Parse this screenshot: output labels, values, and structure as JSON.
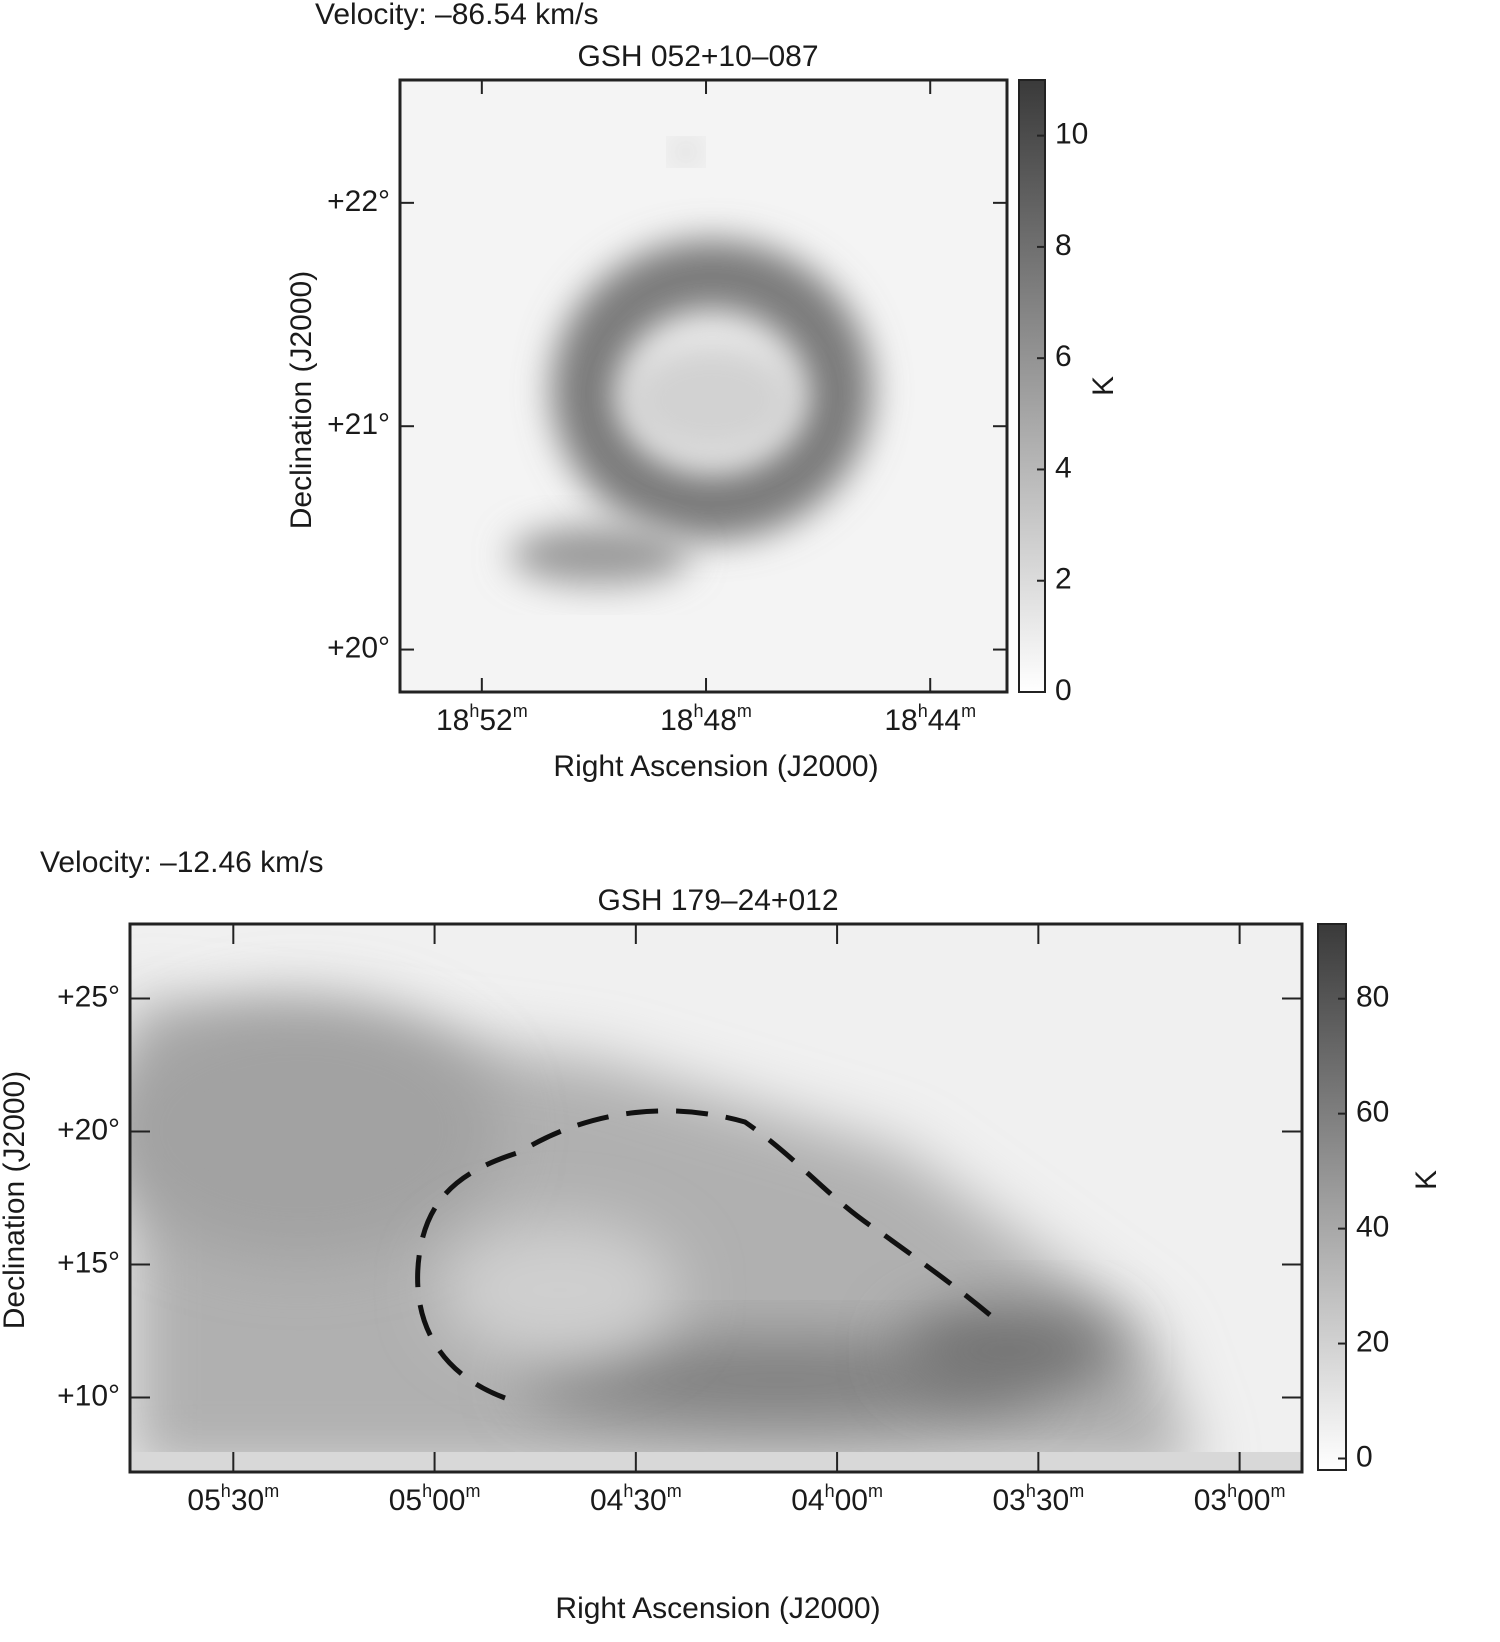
{
  "chart_data": [
    {
      "type": "image",
      "annotation": "Velocity: –86.54 km/s",
      "title": "GSH 052+10–087",
      "xlabel": "Right Ascension (J2000)",
      "ylabel": "Declination (J2000)",
      "xlim": [
        1133.46,
        1122.63
      ],
      "xticks": [
        {
          "value": 1132,
          "label": "18h52m"
        },
        {
          "value": 1128,
          "label": "18h48m"
        },
        {
          "value": 1124,
          "label": "18h44m"
        }
      ],
      "ylim": [
        19.81,
        22.55
      ],
      "yticks": [
        {
          "value": 20,
          "label": "+20°"
        },
        {
          "value": 21,
          "label": "+21°"
        },
        {
          "value": 22,
          "label": "+22°"
        }
      ],
      "colorbar": {
        "label": "K",
        "lim": [
          0,
          11
        ],
        "ticks": [
          0,
          2,
          4,
          6,
          8,
          10
        ],
        "colors": [
          "#ffffff",
          "#3a3a3a"
        ]
      }
    },
    {
      "type": "image",
      "annotation": "Velocity: –12.46 km/s",
      "title": "GSH 179–24+012",
      "xlabel": "Right Ascension (J2000)",
      "ylabel": "Declination (J2000)",
      "xlim": [
        345.4,
        170.7
      ],
      "xticks": [
        {
          "value": 330,
          "label": "05h30m"
        },
        {
          "value": 300,
          "label": "05h00m"
        },
        {
          "value": 270,
          "label": "04h30m"
        },
        {
          "value": 240,
          "label": "04h00m"
        },
        {
          "value": 210,
          "label": "03h30m"
        },
        {
          "value": 180,
          "label": "03h00m"
        }
      ],
      "ylim": [
        7.2,
        27.8
      ],
      "yticks": [
        {
          "value": 10,
          "label": "+10°"
        },
        {
          "value": 15,
          "label": "+15°"
        },
        {
          "value": 20,
          "label": "+20°"
        },
        {
          "value": 25,
          "label": "+25°"
        }
      ],
      "colorbar": {
        "label": "K",
        "lim": [
          -2,
          93
        ],
        "ticks": [
          0,
          20,
          40,
          60,
          80
        ],
        "colors": [
          "#ffffff",
          "#3a3a3a"
        ]
      }
    }
  ]
}
